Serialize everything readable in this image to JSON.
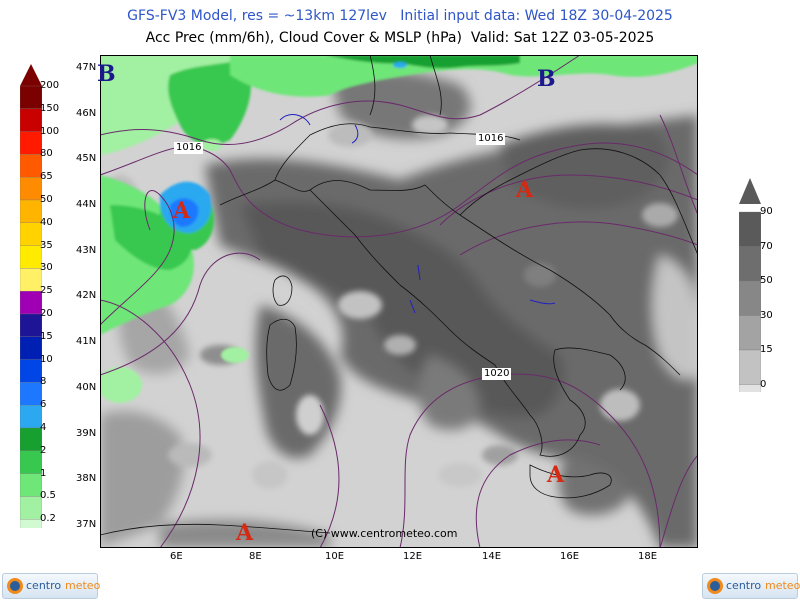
{
  "header": {
    "line1": "GFS-FV3 Model, res = ~13km 127lev   Initial input data: Wed 18Z 30-04-2025",
    "line2": "Acc Prec (mm/6h), Cloud Cover & MSLP (hPa)  Valid: Sat 12Z 03-05-2025"
  },
  "axes": {
    "lat_ticks": [
      "47N",
      "46N",
      "45N",
      "44N",
      "43N",
      "42N",
      "41N",
      "40N",
      "39N",
      "38N",
      "37N"
    ],
    "lon_ticks": [
      "6E",
      "8E",
      "10E",
      "12E",
      "14E",
      "16E",
      "18E"
    ]
  },
  "precip_scale": {
    "labels": [
      "200",
      "150",
      "100",
      "80",
      "65",
      "50",
      "40",
      "35",
      "30",
      "25",
      "20",
      "15",
      "10",
      "8",
      "6",
      "4",
      "2",
      "1",
      "0.5",
      "0.2"
    ],
    "colors": [
      "#7b0000",
      "#c80000",
      "#ff1a00",
      "#ff5a00",
      "#ff8c00",
      "#ffb400",
      "#ffd200",
      "#ffeb00",
      "#fff066",
      "#a000b4",
      "#1e1496",
      "#0020b4",
      "#0046e6",
      "#1e78ff",
      "#2ba8f0",
      "#17a030",
      "#38c850",
      "#6ee678",
      "#a2f0a2",
      "#d2fad2"
    ]
  },
  "cloud_scale": {
    "labels": [
      "90",
      "70",
      "50",
      "30",
      "15",
      "0"
    ],
    "colors": [
      "#5a5a5a",
      "#6e6e6e",
      "#878787",
      "#a3a3a3",
      "#c2c2c2",
      "#e2e2e2"
    ]
  },
  "map": {
    "pressure_labels": [
      "1016",
      "1016",
      "1020"
    ],
    "centers": [
      {
        "letter": "B",
        "kind": "low"
      },
      {
        "letter": "B",
        "kind": "low"
      },
      {
        "letter": "A",
        "kind": "high"
      },
      {
        "letter": "A",
        "kind": "high"
      },
      {
        "letter": "A",
        "kind": "high"
      },
      {
        "letter": "A",
        "kind": "high"
      }
    ],
    "credit": "(C) www.centrometeo.com"
  },
  "colors": {
    "header_blue": "#2e56c8",
    "low_center": "#1a1a8c",
    "high_center": "#d42a14",
    "isobar": "#6a2a6a"
  },
  "logos": [
    {
      "name": "centro",
      "accent": "meteo"
    },
    {
      "name": "centro",
      "accent": "meteo"
    }
  ]
}
